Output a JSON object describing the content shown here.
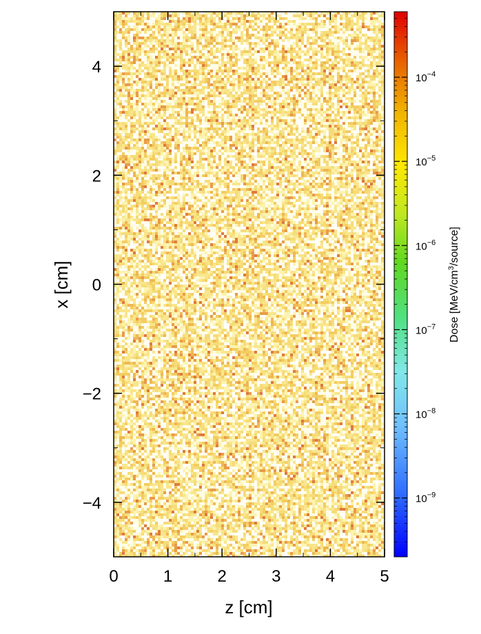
{
  "chart_data": {
    "type": "heatmap",
    "title": "",
    "xlabel": "z [cm]",
    "ylabel": "x [cm]",
    "xlim": [
      0,
      5
    ],
    "ylim": [
      -5,
      5
    ],
    "x_ticks": [
      "0",
      "1",
      "2",
      "3",
      "4",
      "5"
    ],
    "y_ticks": [
      "−4",
      "−2",
      "0",
      "2",
      "4"
    ],
    "y_tick_values": [
      -4,
      -2,
      0,
      2,
      4
    ],
    "x_tick_values": [
      0,
      1,
      2,
      3,
      4,
      5
    ],
    "colorbar": {
      "label": "Dose [MeV/cm³/source]",
      "label_main": "Dose [MeV/cm",
      "label_sup": "3",
      "label_tail": "/source]",
      "scale": "log",
      "range": [
        2e-10,
        0.0006
      ],
      "tick_values": [
        0.0001,
        1e-05,
        1e-06,
        1e-07,
        1e-08,
        1e-09
      ],
      "tick_base": "10",
      "tick_exponents": [
        "−4",
        "−5",
        "−6",
        "−7",
        "−8",
        "−9"
      ],
      "colormap": [
        "#0000ff",
        "#0080ff",
        "#80d8ff",
        "#40e0a0",
        "#60d830",
        "#b0e020",
        "#ffee00",
        "#f0c000",
        "#e08000",
        "#e00000"
      ]
    },
    "field": {
      "description_values": "approximately uniform dose, speckled noise",
      "typical_dose": 1.5e-05,
      "min_dose": 5e-06,
      "max_dose": 6e-05,
      "zero_fraction": 0.12,
      "palette": [
        "#fffde8",
        "#fdf3b0",
        "#f9e68c",
        "#f6dc78",
        "#f3cd62",
        "#efb754",
        "#e89b4a",
        "#df7a3e"
      ]
    }
  }
}
